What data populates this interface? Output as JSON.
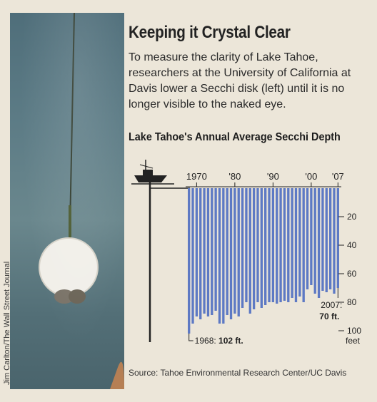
{
  "credit": "Jim Carlton/The Wall Street Journal",
  "header": {
    "title": "Keeping it Crystal Clear",
    "description": "To measure the clarity of Lake Tahoe, researchers at the University of California at Davis lower a Secchi disk (left) until it is no longer visible to the naked eye.",
    "subtitle": "Lake Tahoe's Annual Average Secchi Depth",
    "source": "Source: Tahoe Environmental Research Center/UC Davis"
  },
  "colors": {
    "bar": "#5d79c4",
    "axis": "#222222",
    "paper": "#ece6d9"
  },
  "icons": {
    "boat": "boat-icon",
    "disk": "secchi-disk-icon"
  },
  "chart_data": {
    "type": "bar",
    "title": "Lake Tahoe's Annual Average Secchi Depth",
    "x_tick_labels": [
      "1970",
      "'80",
      "'90",
      "'00",
      "'07"
    ],
    "y_tick_labels": [
      "20",
      "40",
      "60",
      "80",
      "100"
    ],
    "y_unit": "feet",
    "ylim": [
      0,
      100
    ],
    "y_inverted": true,
    "annotations": [
      {
        "year": 1968,
        "label": "1968: ",
        "value_label": "102 ft."
      },
      {
        "year": 2007,
        "label": "2007:",
        "value_label": "70 ft."
      }
    ],
    "x": [
      1968,
      1969,
      1970,
      1971,
      1972,
      1973,
      1974,
      1975,
      1976,
      1977,
      1978,
      1979,
      1980,
      1981,
      1982,
      1983,
      1984,
      1985,
      1986,
      1987,
      1988,
      1989,
      1990,
      1991,
      1992,
      1993,
      1994,
      1995,
      1996,
      1997,
      1998,
      1999,
      2000,
      2001,
      2002,
      2003,
      2004,
      2005,
      2006,
      2007
    ],
    "values": [
      102,
      95,
      90,
      92,
      88,
      90,
      89,
      86,
      95,
      95,
      89,
      92,
      88,
      90,
      84,
      80,
      88,
      85,
      80,
      84,
      82,
      80,
      80,
      81,
      80,
      79,
      80,
      77,
      80,
      76,
      80,
      71,
      68,
      74,
      77,
      72,
      73,
      71,
      74,
      70
    ]
  }
}
